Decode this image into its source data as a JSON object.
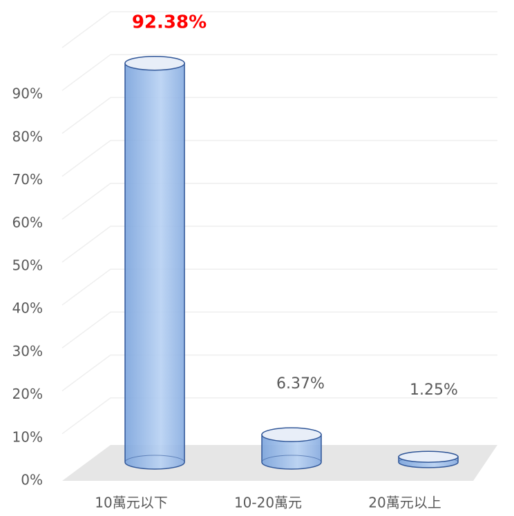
{
  "chart_data": {
    "type": "cylinder",
    "categories": [
      "10萬元以下",
      "10-20萬元",
      "20萬元以上"
    ],
    "values": [
      92.38,
      6.37,
      1.25
    ],
    "value_labels": [
      "92.38%",
      "6.37%",
      "1.25%"
    ],
    "value_label_colors": [
      "#ff0000",
      "#595959",
      "#595959"
    ],
    "color": "#8fb4e8",
    "ylim": [
      0,
      100
    ],
    "yticks": [
      {
        "value": 0,
        "label": "0%"
      },
      {
        "value": 10,
        "label": "10%"
      },
      {
        "value": 20,
        "label": "20%"
      },
      {
        "value": 30,
        "label": "30%"
      },
      {
        "value": 40,
        "label": "40%"
      },
      {
        "value": 50,
        "label": "50%"
      },
      {
        "value": 60,
        "label": "60%"
      },
      {
        "value": 70,
        "label": "70%"
      },
      {
        "value": 80,
        "label": "80%"
      },
      {
        "value": 90,
        "label": "90%"
      }
    ],
    "grid": true
  }
}
